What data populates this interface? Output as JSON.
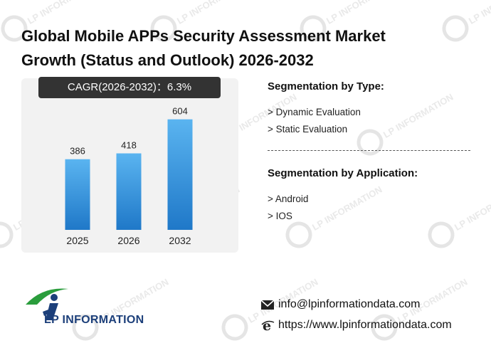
{
  "title_line1": "Global Mobile APPs Security Assessment Market",
  "title_line2": "Growth (Status and Outlook) 2026-2032",
  "cagr_label": "CAGR(2026-2032)：6.3%",
  "segmentation_type": {
    "heading": "Segmentation by Type:",
    "items": [
      "> Dynamic Evaluation",
      "> Static Evaluation"
    ]
  },
  "segmentation_application": {
    "heading": "Segmentation by Application:",
    "items": [
      "> Android",
      "> IOS"
    ]
  },
  "contact": {
    "email": "info@lpinformationdata.com",
    "website": "https://www.lpinformationdata.com",
    "email_icon": "envelope-icon",
    "web_icon": "browser-e-icon"
  },
  "logo": {
    "text": "LP INFORMATION",
    "icon": "lp-runner-logo"
  },
  "watermark_text": "LP INFORMATION",
  "colors": {
    "bar_top": "#5ab4f0",
    "bar_bottom": "#1f78c8",
    "cagr_bg": "#333333",
    "panel_bg": "#f2f2f2",
    "logo_blue": "#1c3f7a",
    "logo_green": "#2a9d3c"
  },
  "chart_data": {
    "type": "bar",
    "categories": [
      "2025",
      "2026",
      "2032"
    ],
    "values": [
      386,
      418,
      604
    ],
    "title": "",
    "xlabel": "",
    "ylabel": "",
    "ylim": [
      0,
      700
    ],
    "grid": false,
    "legend": "none",
    "data_labels": true
  }
}
